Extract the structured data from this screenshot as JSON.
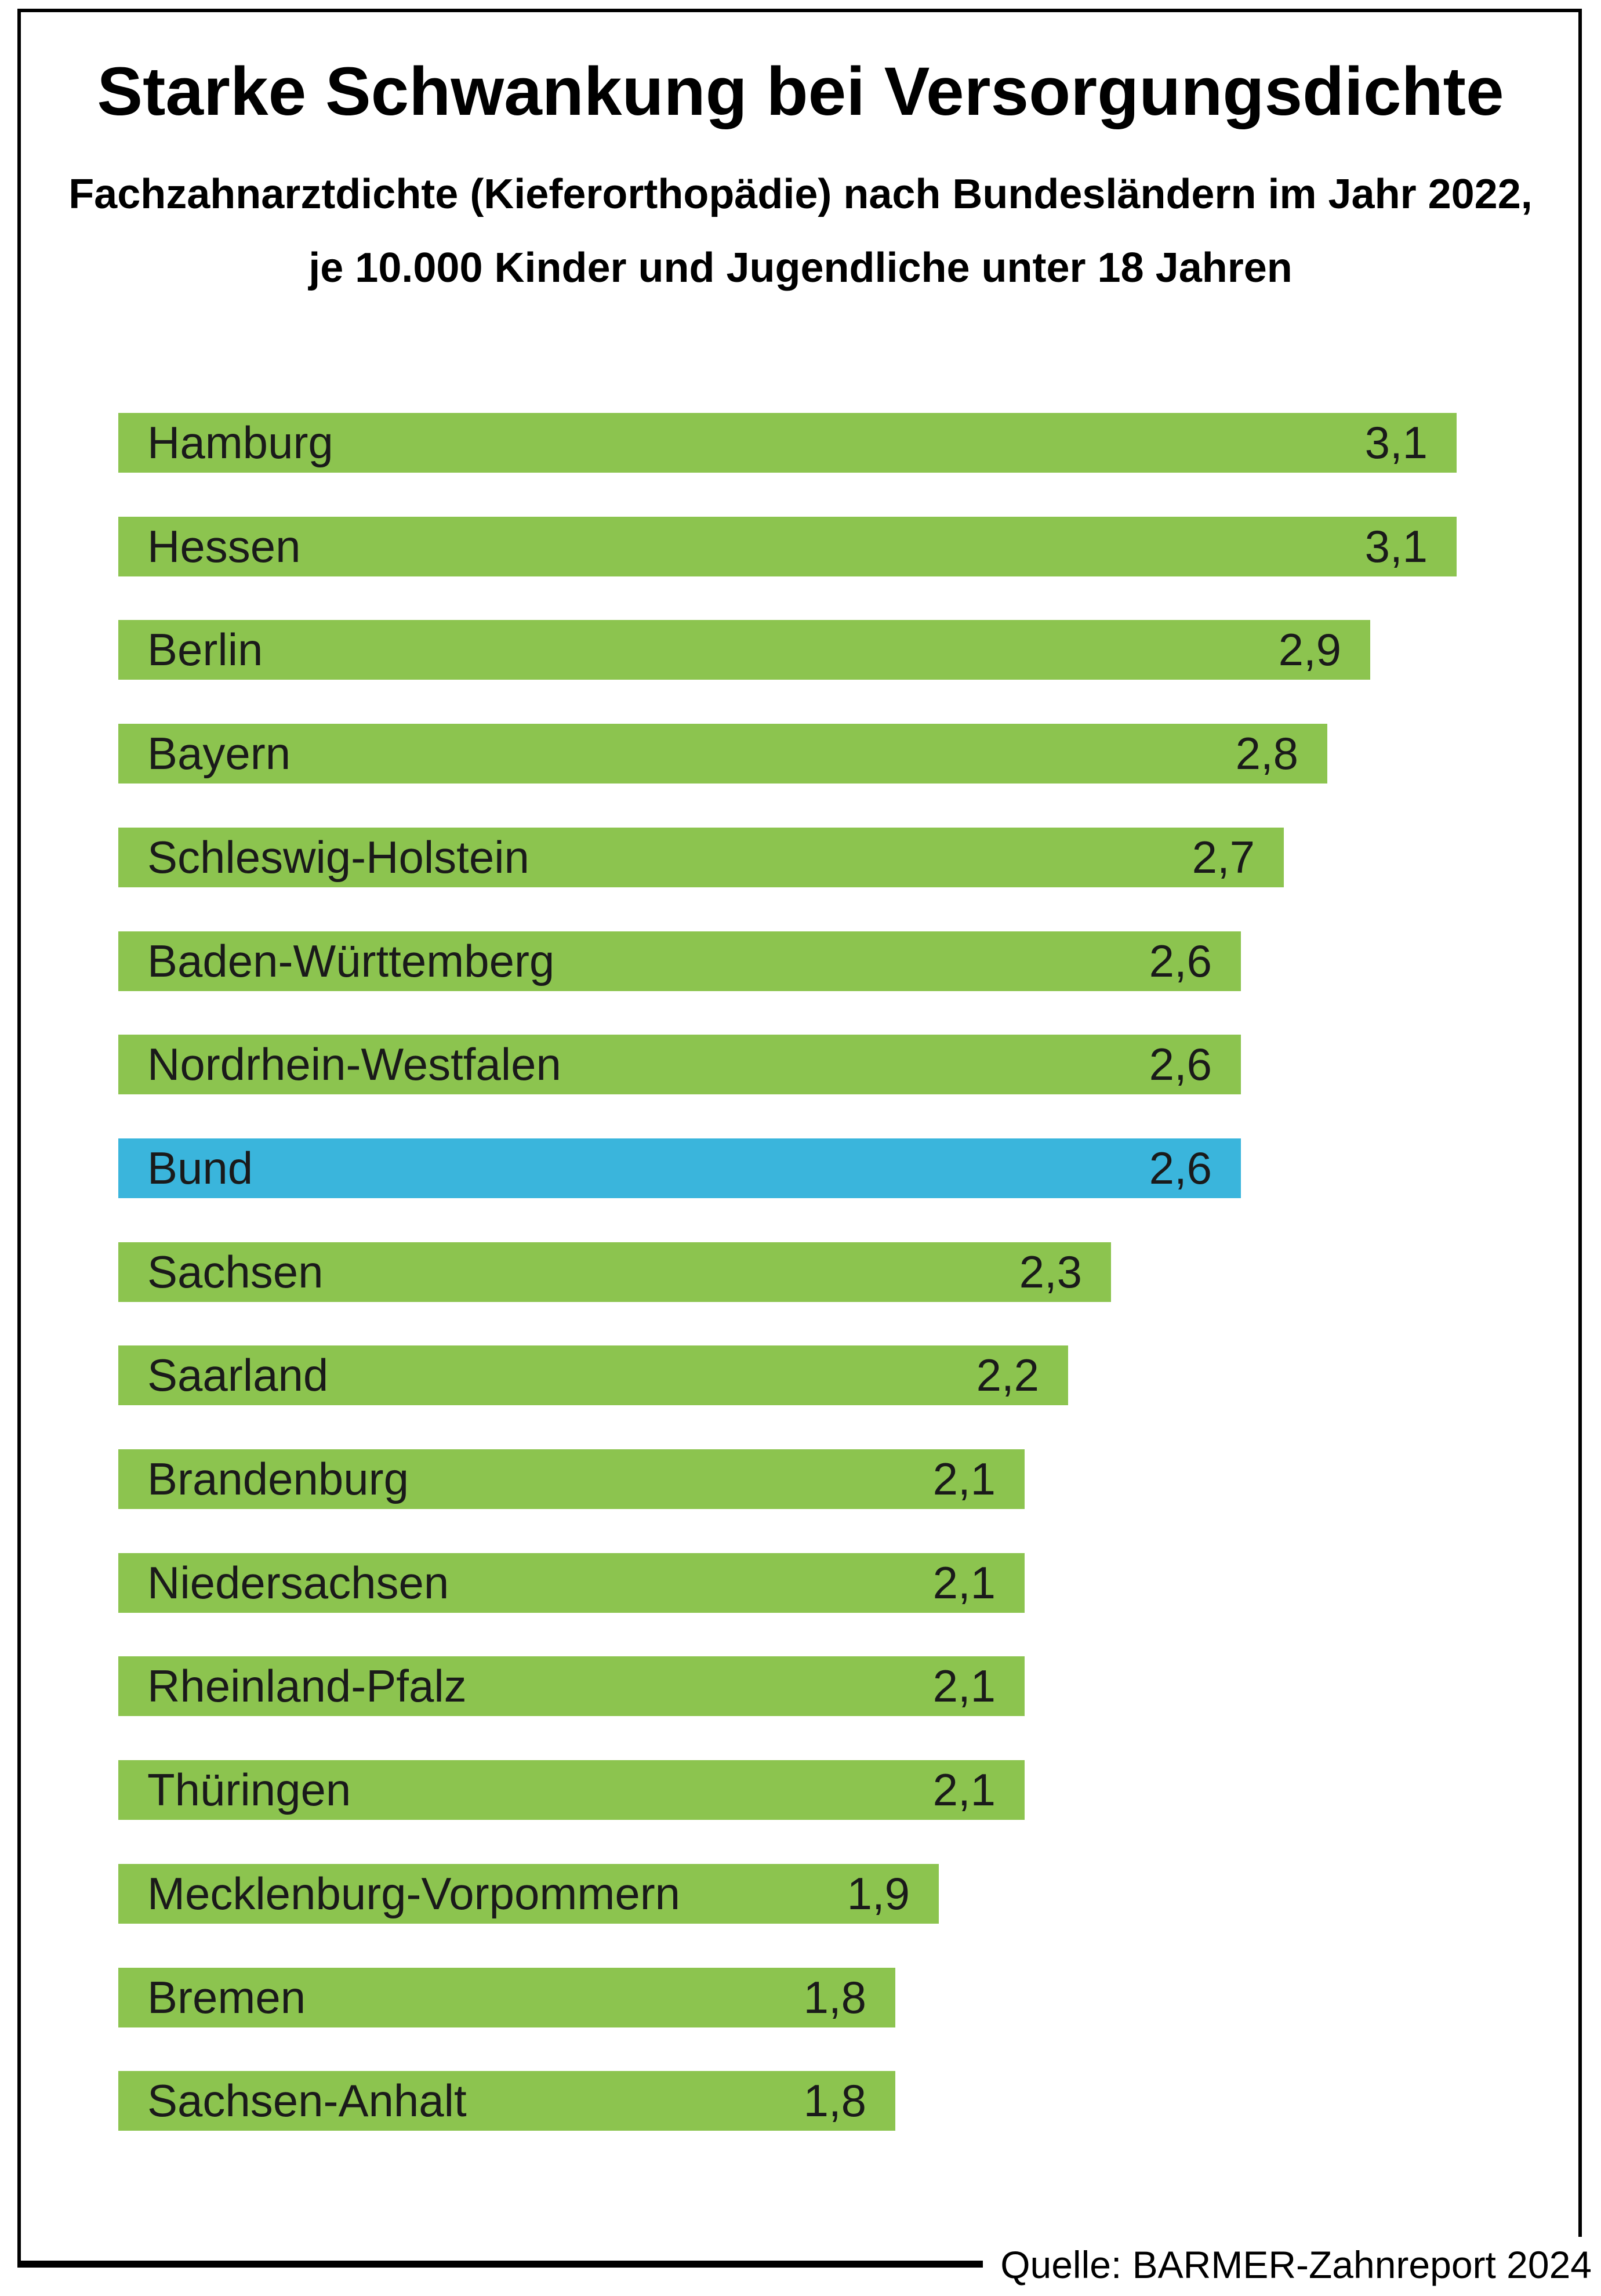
{
  "page": {
    "title": "Starke Schwankung bei Versorgungsdichte",
    "subtitle_line1": "Fachzahnarztdichte (Kieferorthopädie) nach Bundesländern im Jahr 2022,",
    "subtitle_line2": "je 10.000 Kinder und Jugendliche unter 18 Jahren",
    "source": "Quelle: BARMER-Zahnreport 2024"
  },
  "colors": {
    "bar_default": "#8CC44F",
    "bar_highlight": "#3AB5DC",
    "bar_text": "#1A1A1A",
    "frame": "#000000"
  },
  "chart_data": {
    "type": "bar",
    "orientation": "horizontal",
    "title": "Starke Schwankung bei Versorgungsdichte",
    "subtitle": "Fachzahnarztdichte (Kieferorthopädie) nach Bundesländern im Jahr 2022, je 10.000 Kinder und Jugendliche unter 18 Jahren",
    "categories": [
      "Hamburg",
      "Hessen",
      "Berlin",
      "Bayern",
      "Schleswig-Holstein",
      "Baden-Württemberg",
      "Nordrhein-Westfalen",
      "Bund",
      "Sachsen",
      "Saarland",
      "Brandenburg",
      "Niedersachsen",
      "Rheinland-Pfalz",
      "Thüringen",
      "Mecklenburg-Vorpommern",
      "Bremen",
      "Sachsen-Anhalt"
    ],
    "values": [
      3.1,
      3.1,
      2.9,
      2.8,
      2.7,
      2.6,
      2.6,
      2.6,
      2.3,
      2.2,
      2.1,
      2.1,
      2.1,
      2.1,
      1.9,
      1.8,
      1.8
    ],
    "value_labels": [
      "3,1",
      "3,1",
      "2,9",
      "2,8",
      "2,7",
      "2,6",
      "2,6",
      "2,6",
      "2,3",
      "2,2",
      "2,1",
      "2,1",
      "2,1",
      "2,1",
      "1,9",
      "1,8",
      "1,8"
    ],
    "highlight_category": "Bund",
    "highlight_index": 7,
    "xlim": [
      0,
      3.1
    ],
    "grid": false,
    "axes_visible": false,
    "value_labels_inside_bars": true,
    "category_labels_inside_bars": true,
    "source": "Quelle: BARMER-Zahnreport 2024"
  }
}
